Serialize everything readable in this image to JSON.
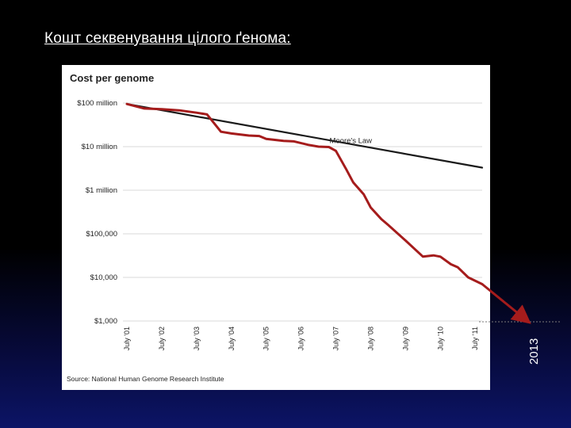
{
  "slide": {
    "title": "Кошт секвенування цілого ґенома:",
    "year_annotation": "2013"
  },
  "colors": {
    "background_top": "#000000",
    "background_bottom": "#0c1466",
    "panel": "#ffffff",
    "moore_line": "#1a1a1a",
    "cost_line": "#a51c1c",
    "grid": "#d9d9d9",
    "text": "#222222"
  },
  "chart_data": {
    "type": "line",
    "title": "Cost per genome",
    "source": "Source: National Human Genome Research Institute",
    "y_scale": "log",
    "ylim": [
      1000,
      100000000
    ],
    "y_ticks": [
      {
        "value": 100000000,
        "label": "$100 million"
      },
      {
        "value": 10000000,
        "label": "$10 million"
      },
      {
        "value": 1000000,
        "label": "$1 million"
      },
      {
        "value": 100000,
        "label": "$100,000"
      },
      {
        "value": 10000,
        "label": "$10,000"
      },
      {
        "value": 1000,
        "label": "$1,000"
      }
    ],
    "x_ticks": [
      "July '01",
      "July '02",
      "July '03",
      "July '04",
      "July '05",
      "July '06",
      "July '07",
      "July '08",
      "July '09",
      "July '10",
      "July '11"
    ],
    "grid": true,
    "series": [
      {
        "name": "Moore's Law",
        "color": "#1a1a1a",
        "points": [
          [
            2001.5,
            95000000
          ],
          [
            2011.7,
            3300000
          ]
        ]
      },
      {
        "name": "Cost per genome",
        "color": "#a51c1c",
        "points": [
          [
            2001.5,
            95000000
          ],
          [
            2002.0,
            75000000
          ],
          [
            2002.5,
            72000000
          ],
          [
            2003.0,
            68000000
          ],
          [
            2003.5,
            60000000
          ],
          [
            2003.8,
            55000000
          ],
          [
            2004.2,
            22000000
          ],
          [
            2004.5,
            20000000
          ],
          [
            2005.0,
            18000000
          ],
          [
            2005.3,
            17500000
          ],
          [
            2005.5,
            15000000
          ],
          [
            2006.0,
            13500000
          ],
          [
            2006.3,
            13200000
          ],
          [
            2006.7,
            11000000
          ],
          [
            2007.0,
            10000000
          ],
          [
            2007.3,
            9800000
          ],
          [
            2007.5,
            8000000
          ],
          [
            2007.8,
            3000000
          ],
          [
            2008.0,
            1500000
          ],
          [
            2008.3,
            800000
          ],
          [
            2008.5,
            400000
          ],
          [
            2008.8,
            220000
          ],
          [
            2009.0,
            160000
          ],
          [
            2009.5,
            70000
          ],
          [
            2010.0,
            30000
          ],
          [
            2010.3,
            32000
          ],
          [
            2010.5,
            30000
          ],
          [
            2010.8,
            20000
          ],
          [
            2011.0,
            17000
          ],
          [
            2011.3,
            10000
          ],
          [
            2011.7,
            7000
          ]
        ]
      }
    ],
    "annotations": [
      {
        "text": "Moore's Law",
        "x": 2008.0,
        "y": 11000000
      }
    ],
    "extrapolation": {
      "color": "#a51c1c",
      "points": [
        [
          2011.7,
          7000
        ],
        [
          2013.0,
          1000
        ]
      ],
      "label": "2013"
    }
  }
}
